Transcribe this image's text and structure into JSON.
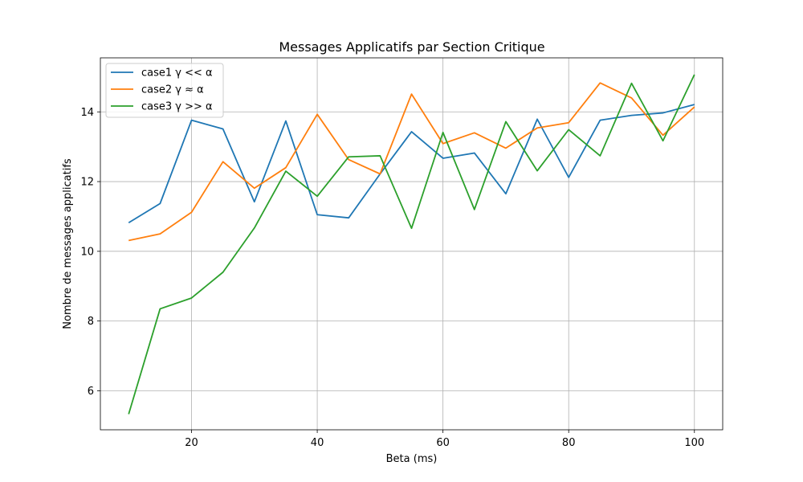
{
  "chart_data": {
    "type": "line",
    "title": "Messages Applicatifs par Section Critique",
    "xlabel": "Beta (ms)",
    "ylabel": "Nombre de messages applicatifs",
    "xlim": [
      5.5,
      104.5
    ],
    "ylim": [
      4.88,
      15.55
    ],
    "xticks": [
      20,
      40,
      60,
      80,
      100
    ],
    "yticks": [
      6,
      8,
      10,
      12,
      14
    ],
    "grid": true,
    "legend_position": "top-left",
    "x": [
      10,
      15,
      20,
      25,
      30,
      35,
      40,
      45,
      50,
      55,
      60,
      65,
      70,
      75,
      80,
      85,
      90,
      95,
      100
    ],
    "series": [
      {
        "name": "case1 γ << α",
        "color": "#1f77b4",
        "values": [
          10.82,
          11.37,
          13.76,
          13.51,
          11.42,
          13.74,
          11.05,
          10.96,
          12.22,
          13.43,
          12.67,
          12.82,
          11.65,
          13.79,
          12.12,
          13.76,
          13.9,
          13.97,
          14.21
        ]
      },
      {
        "name": "case2 γ ≈ α",
        "color": "#ff7f0e",
        "values": [
          10.31,
          10.5,
          11.12,
          12.57,
          11.81,
          12.4,
          13.93,
          12.63,
          12.22,
          14.51,
          13.09,
          13.4,
          12.96,
          13.54,
          13.69,
          14.83,
          14.4,
          13.33,
          14.14
        ]
      },
      {
        "name": "case3 γ >> α",
        "color": "#2ca02c",
        "values": [
          5.33,
          8.35,
          8.66,
          9.4,
          10.67,
          12.3,
          11.58,
          12.71,
          12.74,
          10.66,
          13.41,
          11.2,
          13.72,
          12.31,
          13.49,
          12.74,
          14.82,
          13.17,
          15.07
        ]
      }
    ]
  }
}
